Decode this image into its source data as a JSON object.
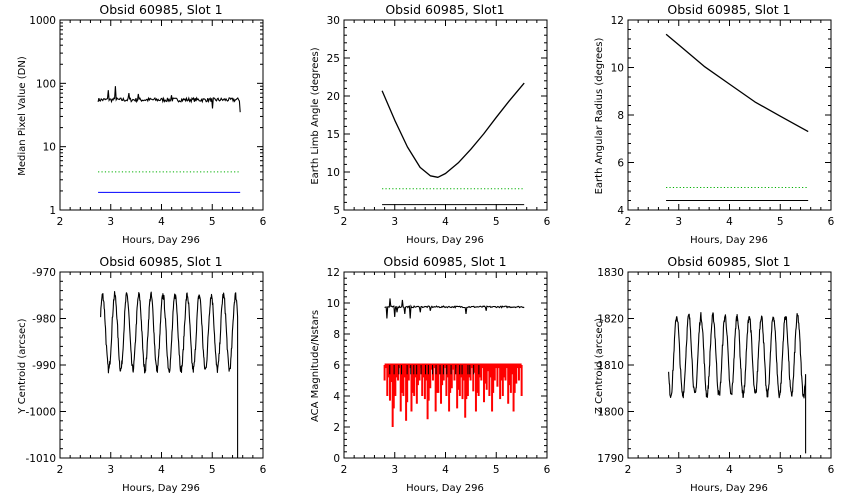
{
  "chart_data": [
    {
      "id": "median",
      "type": "line",
      "title": "Obsid 60985, Slot 1",
      "xlabel": "Hours, Day 296",
      "ylabel": "Median Pixel Value (DN)",
      "xlim": [
        2,
        6
      ],
      "ylim": [
        1,
        1000
      ],
      "yscale": "log",
      "xticks": [
        "2",
        "3",
        "4",
        "5",
        "6"
      ],
      "yticks": [
        "1",
        "10",
        "100",
        "1000"
      ],
      "ytick_values": [
        1,
        10,
        100,
        1000
      ],
      "grid": false,
      "series": [
        {
          "kind": "noisy",
          "color": "#000000",
          "x": [
            2.75,
            5.55
          ],
          "base": 55,
          "noise": 4,
          "spikes": [
            [
              2.95,
              78
            ],
            [
              3.1,
              90
            ],
            [
              3.35,
              70
            ],
            [
              3.55,
              68
            ],
            [
              4.2,
              65
            ],
            [
              5.0,
              40
            ],
            [
              5.55,
              35
            ]
          ]
        },
        {
          "kind": "dotted",
          "color": "#00b000",
          "x": [
            2.75,
            5.55
          ],
          "value": 4
        },
        {
          "kind": "hline",
          "color": "#0000ff",
          "x": [
            2.75,
            5.55
          ],
          "value": 1.9
        }
      ]
    },
    {
      "id": "limb",
      "type": "line",
      "title": "Obsid 60985, Slot1",
      "xlabel": "Hours, Day 296",
      "ylabel": "Earth Limb Angle (degrees)",
      "xlim": [
        2,
        6
      ],
      "ylim": [
        5,
        30
      ],
      "yscale": "linear",
      "xticks": [
        "2",
        "3",
        "4",
        "5",
        "6"
      ],
      "yticks": [
        "5",
        "10",
        "15",
        "20",
        "25",
        "30"
      ],
      "ytick_values": [
        5,
        10,
        15,
        20,
        25,
        30
      ],
      "grid": false,
      "series": [
        {
          "kind": "points",
          "color": "#000000",
          "x": [
            2.75,
            3.0,
            3.25,
            3.5,
            3.7,
            3.85,
            4.0,
            4.25,
            4.5,
            4.75,
            5.0,
            5.25,
            5.55
          ],
          "y": [
            20.7,
            16.8,
            13.3,
            10.6,
            9.5,
            9.3,
            9.8,
            11.2,
            13.0,
            15.0,
            17.2,
            19.3,
            21.7
          ]
        },
        {
          "kind": "dotted",
          "color": "#00b000",
          "x": [
            2.75,
            5.55
          ],
          "value": 7.8
        },
        {
          "kind": "hline",
          "color": "#000000",
          "x": [
            2.75,
            5.55
          ],
          "value": 5.7
        }
      ]
    },
    {
      "id": "radius",
      "type": "line",
      "title": "Obsid 60985, Slot 1",
      "xlabel": "Hours, Day 296",
      "ylabel": "Earth Angular Radius (degrees)",
      "xlim": [
        2,
        6
      ],
      "ylim": [
        4,
        12
      ],
      "yscale": "linear",
      "xticks": [
        "2",
        "3",
        "4",
        "5",
        "6"
      ],
      "yticks": [
        "4",
        "6",
        "8",
        "10",
        "12"
      ],
      "ytick_values": [
        4,
        6,
        8,
        10,
        12
      ],
      "grid": false,
      "series": [
        {
          "kind": "points",
          "color": "#000000",
          "x": [
            2.75,
            3.0,
            3.5,
            4.0,
            4.5,
            5.0,
            5.55
          ],
          "y": [
            11.4,
            10.95,
            10.05,
            9.3,
            8.55,
            7.95,
            7.3
          ]
        },
        {
          "kind": "dotted",
          "color": "#00b000",
          "x": [
            2.75,
            5.55
          ],
          "value": 4.95
        },
        {
          "kind": "hline",
          "color": "#000000",
          "x": [
            2.75,
            5.55
          ],
          "value": 4.4
        }
      ]
    },
    {
      "id": "ycen",
      "type": "line",
      "title": "Obsid 60985, Slot 1",
      "xlabel": "Hours, Day 296",
      "ylabel": "Y Centroid (arcsec)",
      "xlim": [
        2,
        6
      ],
      "ylim": [
        -1010,
        -970
      ],
      "yscale": "linear",
      "xticks": [
        "2",
        "3",
        "4",
        "5",
        "6"
      ],
      "yticks": [
        "-1010",
        "-1000",
        "-990",
        "-980",
        "-970"
      ],
      "ytick_values": [
        -1010,
        -1000,
        -990,
        -980,
        -970
      ],
      "grid": false,
      "series": [
        {
          "kind": "sine",
          "color": "#000000",
          "x": [
            2.8,
            5.5
          ],
          "mean": -983,
          "amp": 8,
          "period": 0.238,
          "phase": 0.5,
          "drop": -1010
        }
      ]
    },
    {
      "id": "mag",
      "type": "line",
      "title": "Obsid 60985, Slot 1",
      "xlabel": "Hours, Day 296",
      "ylabel": "ACA Magnitude/Nstars",
      "xlim": [
        2,
        6
      ],
      "ylim": [
        0,
        12
      ],
      "yscale": "linear",
      "xticks": [
        "2",
        "3",
        "4",
        "5",
        "6"
      ],
      "yticks": [
        "0",
        "2",
        "4",
        "6",
        "8",
        "10",
        "12"
      ],
      "ytick_values": [
        0,
        2,
        4,
        6,
        8,
        10,
        12
      ],
      "grid": false,
      "series": [
        {
          "kind": "noisy",
          "color": "#000000",
          "x": [
            2.8,
            5.55
          ],
          "base": 9.75,
          "noise": 0.05,
          "spikes": [
            [
              2.85,
              9.0
            ],
            [
              2.9,
              10.3
            ],
            [
              3.0,
              9.1
            ],
            [
              3.05,
              9.4
            ],
            [
              3.15,
              10.2
            ],
            [
              3.2,
              9.3
            ],
            [
              3.3,
              9.0
            ],
            [
              3.5,
              9.4
            ],
            [
              3.7,
              9.5
            ],
            [
              4.4,
              9.3
            ],
            [
              4.8,
              9.5
            ]
          ]
        },
        {
          "kind": "bars",
          "color": "#ff0000",
          "x": [
            2.8,
            5.5
          ],
          "top": 6,
          "depths": [
            5,
            4,
            3.7,
            2,
            4,
            5,
            3,
            4,
            2.4,
            5,
            3,
            4,
            3.5,
            5,
            4,
            3.8,
            2.5,
            4.5,
            5,
            3,
            4.2,
            3.5,
            5,
            4,
            3,
            4.5,
            5,
            3.2,
            4,
            3.8,
            2.6,
            4,
            5,
            4.3,
            3,
            4,
            5,
            3.6,
            4.4,
            4,
            3,
            5,
            4.6,
            3.8,
            4,
            5,
            3.5,
            4.2,
            3,
            4.8,
            5,
            4
          ]
        },
        {
          "kind": "ticks",
          "color": "#000000",
          "x": [
            2.9,
            4.7
          ],
          "top": 6,
          "bottom": 5.4,
          "count": 24
        }
      ]
    },
    {
      "id": "zcen",
      "type": "line",
      "title": "Obsid 60985, Slot 1",
      "xlabel": "Hours, Day 296",
      "ylabel": "Z Centroid (arcsec)",
      "xlim": [
        2,
        6
      ],
      "ylim": [
        1790,
        1830
      ],
      "yscale": "linear",
      "xticks": [
        "2",
        "3",
        "4",
        "5",
        "6"
      ],
      "yticks": [
        "1790",
        "1800",
        "1810",
        "1820",
        "1830"
      ],
      "ytick_values": [
        1790,
        1800,
        1810,
        1820,
        1830
      ],
      "grid": false,
      "series": [
        {
          "kind": "sine",
          "color": "#000000",
          "x": [
            2.8,
            5.5
          ],
          "mean": 1812,
          "amp": 8.5,
          "period": 0.238,
          "phase": 3.6,
          "drop": 1791
        }
      ]
    }
  ]
}
